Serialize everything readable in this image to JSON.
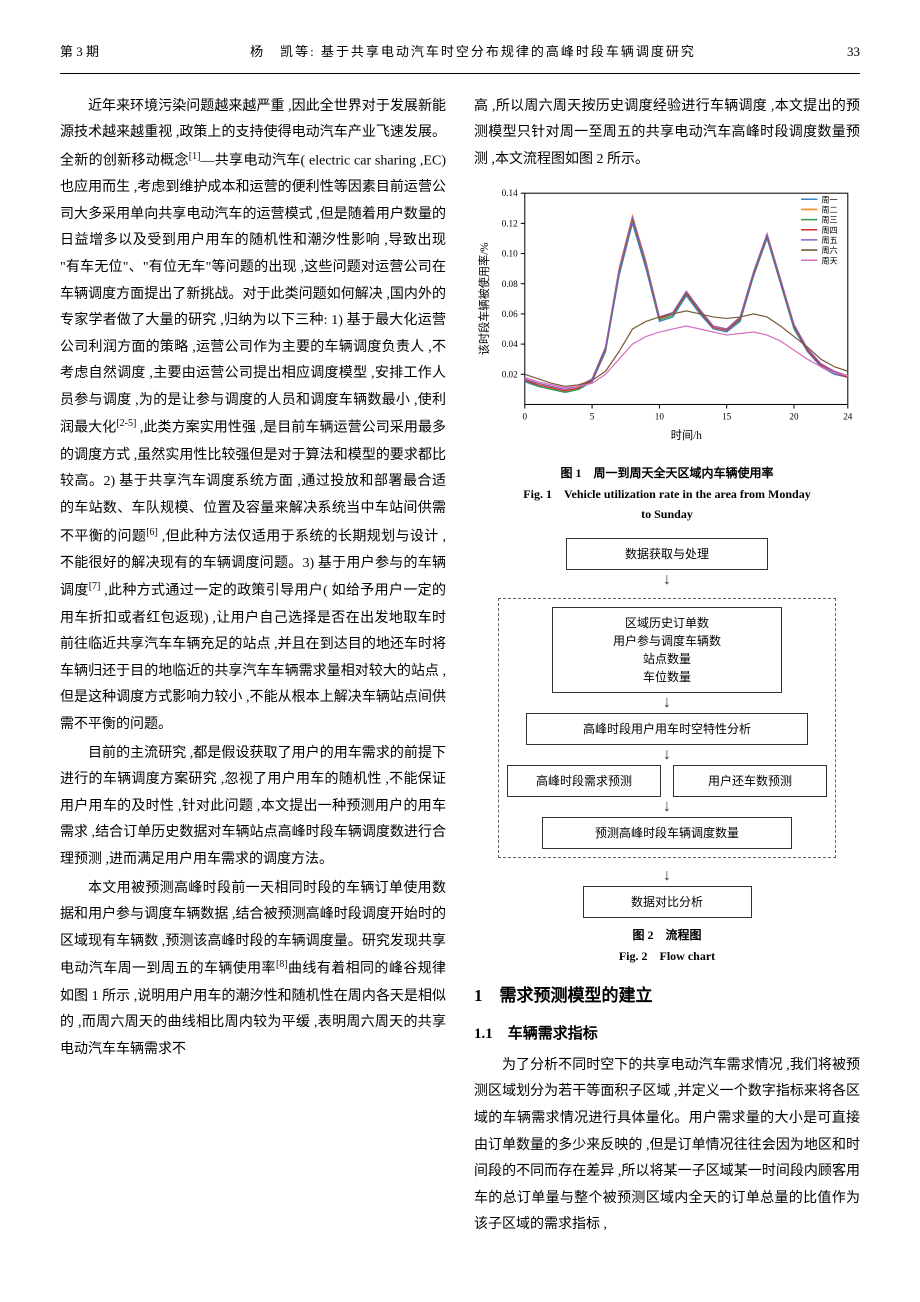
{
  "header": {
    "issue": "第 3 期",
    "title": "杨　凯等: 基于共享电动汽车时空分布规律的高峰时段车辆调度研究",
    "page": "33"
  },
  "left_col": {
    "para1": "近年来环境污染问题越来越严重 ,因此全世界对于发展新能源技术越来越重视 ,政策上的支持使得电动汽车产业飞速发展。全新的创新移动概念",
    "sup1": "[1]",
    "para1b": "—共享电动汽车( electric car sharing ,EC) 也应用而生 ,考虑到维护成本和运营的便利性等因素目前运营公司大多采用单向共享电动汽车的运营模式 ,但是随着用户数量的日益增多以及受到用户用车的随机性和潮汐性影响 ,导致出现 \"有车无位\"、\"有位无车\"等问题的出现 ,这些问题对运营公司在车辆调度方面提出了新挑战。对于此类问题如何解决 ,国内外的专家学者做了大量的研究 ,归纳为以下三种: 1) 基于最大化运营公司利润方面的策略 ,运营公司作为主要的车辆调度负责人 ,不考虑自然调度 ,主要由运营公司提出相应调度模型 ,安排工作人员参与调度 ,为的是让参与调度的人员和调度车辆数最小 ,使利润最大化",
    "sup2": "[2-5]",
    "para1c": " ,此类方案实用性强 ,是目前车辆运营公司采用最多的调度方式 ,虽然实用性比较强但是对于算法和模型的要求都比较高。2) 基于共享汽车调度系统方面 ,通过投放和部署最合适的车站数、车队规模、位置及容量来解决系统当中车站间供需不平衡的问题",
    "sup3": "[6]",
    "para1d": " ,但此种方法仅适用于系统的长期规划与设计 ,不能很好的解决现有的车辆调度问题。3) 基于用户参与的车辆调度",
    "sup4": "[7]",
    "para1e": " ,此种方式通过一定的政策引导用户( 如给予用户一定的用车折扣或者红包返现) ,让用户自己选择是否在出发地取车时前往临近共享汽车车辆充足的站点 ,并且在到达目的地还车时将车辆归还于目的地临近的共享汽车车辆需求量相对较大的站点 ,但是这种调度方式影响力较小 ,不能从根本上解决车辆站点间供需不平衡的问题。",
    "para2": "目前的主流研究 ,都是假设获取了用户的用车需求的前提下进行的车辆调度方案研究 ,忽视了用户用车的随机性 ,不能保证用户用车的及时性 ,针对此问题 ,本文提出一种预测用户的用车需求 ,结合订单历史数据对车辆站点高峰时段车辆调度数进行合理预测 ,进而满足用户用车需求的调度方法。",
    "para3a": "本文用被预测高峰时段前一天相同时段的车辆订单使用数据和用户参与调度车辆数据 ,结合被预测高峰时段调度开始时的区域现有车辆数 ,预测该高峰时段的车辆调度量。研究发现共享电动汽车周一到周五的车辆使用率",
    "sup5": "[8]",
    "para3b": "曲线有着相同的峰谷规律如图 1 所示 ,说明用户用车的潮汐性和随机性在周内各天是相似的 ,而周六周天的曲线相比周内较为平缓 ,表明周六周天的共享电动汽车车辆需求不"
  },
  "right_col": {
    "para0": "高 ,所以周六周天按历史调度经验进行车辆调度 ,本文提出的预测模型只针对周一至周五的共享电动汽车高峰时段调度数量预测 ,本文流程图如图 2 所示。",
    "section1_num": "1",
    "section1_title": "需求预测模型的建立",
    "subsection11_num": "1.1",
    "subsection11_title": "车辆需求指标",
    "para11": "为了分析不同时空下的共享电动汽车需求情况 ,我们将被预测区域划分为若干等面积子区域 ,并定义一个数字指标来将各区域的车辆需求情况进行具体量化。用户需求量的大小是可直接由订单数量的多少来反映的 ,但是订单情况往往会因为地区和时间段的不同而存在差异 ,所以将某一子区域某一时间段内顾客用车的总订单量与整个被预测区域内全天的订单总量的比值作为该子区域的需求指标 ,"
  },
  "fig1": {
    "caption_cn": "图 1　周一到周天全天区域内车辆使用率",
    "caption_en_a": "Fig. 1　Vehicle utilization rate in the area from Monday",
    "caption_en_b": "to Sunday",
    "chart": {
      "type": "line",
      "xlabel": "时间/h",
      "ylabel": "该时段车辆被使用率/%",
      "xlim": [
        0,
        24
      ],
      "ylim": [
        0,
        0.14
      ],
      "xticks": [
        0,
        5,
        10,
        15,
        20,
        24
      ],
      "yticks": [
        0.02,
        0.04,
        0.06,
        0.08,
        0.1,
        0.12,
        0.14
      ],
      "x_values": [
        0,
        1,
        2,
        3,
        4,
        5,
        6,
        7,
        8,
        9,
        10,
        11,
        12,
        13,
        14,
        15,
        16,
        17,
        18,
        19,
        20,
        21,
        22,
        23,
        24
      ],
      "series": [
        {
          "name": "周一",
          "color": "#3a82c4",
          "y": [
            0.015,
            0.012,
            0.01,
            0.008,
            0.01,
            0.015,
            0.035,
            0.085,
            0.12,
            0.09,
            0.055,
            0.058,
            0.072,
            0.06,
            0.05,
            0.048,
            0.055,
            0.085,
            0.11,
            0.08,
            0.05,
            0.035,
            0.025,
            0.02,
            0.018
          ]
        },
        {
          "name": "周二",
          "color": "#f48c2a",
          "y": [
            0.017,
            0.013,
            0.011,
            0.009,
            0.011,
            0.017,
            0.038,
            0.09,
            0.125,
            0.095,
            0.058,
            0.06,
            0.075,
            0.063,
            0.052,
            0.05,
            0.058,
            0.088,
            0.113,
            0.083,
            0.053,
            0.037,
            0.027,
            0.022,
            0.019
          ]
        },
        {
          "name": "周三",
          "color": "#2e9e4a",
          "y": [
            0.016,
            0.012,
            0.01,
            0.008,
            0.01,
            0.016,
            0.036,
            0.087,
            0.122,
            0.092,
            0.056,
            0.059,
            0.073,
            0.061,
            0.051,
            0.049,
            0.056,
            0.086,
            0.111,
            0.081,
            0.051,
            0.036,
            0.026,
            0.021,
            0.018
          ]
        },
        {
          "name": "周四",
          "color": "#d62a2a",
          "y": [
            0.016,
            0.013,
            0.011,
            0.009,
            0.011,
            0.016,
            0.037,
            0.088,
            0.123,
            0.093,
            0.057,
            0.06,
            0.074,
            0.062,
            0.051,
            0.049,
            0.057,
            0.087,
            0.112,
            0.082,
            0.052,
            0.036,
            0.026,
            0.021,
            0.018
          ]
        },
        {
          "name": "周五",
          "color": "#8a5fc4",
          "y": [
            0.017,
            0.014,
            0.012,
            0.01,
            0.012,
            0.017,
            0.038,
            0.089,
            0.124,
            0.094,
            0.058,
            0.061,
            0.075,
            0.063,
            0.052,
            0.05,
            0.058,
            0.088,
            0.113,
            0.083,
            0.053,
            0.037,
            0.027,
            0.022,
            0.019
          ]
        },
        {
          "name": "周六",
          "color": "#7a5a3a",
          "y": [
            0.02,
            0.017,
            0.014,
            0.012,
            0.013,
            0.016,
            0.022,
            0.035,
            0.05,
            0.055,
            0.058,
            0.06,
            0.062,
            0.06,
            0.058,
            0.057,
            0.058,
            0.06,
            0.058,
            0.052,
            0.045,
            0.038,
            0.03,
            0.025,
            0.022
          ]
        },
        {
          "name": "周天",
          "color": "#d96fc0",
          "y": [
            0.018,
            0.015,
            0.013,
            0.011,
            0.012,
            0.014,
            0.02,
            0.03,
            0.04,
            0.045,
            0.048,
            0.05,
            0.052,
            0.05,
            0.048,
            0.046,
            0.047,
            0.048,
            0.046,
            0.042,
            0.036,
            0.03,
            0.025,
            0.021,
            0.019
          ]
        }
      ],
      "background_color": "#ffffff",
      "axis_color": "#000000",
      "line_width": 1.2
    }
  },
  "fig2": {
    "caption_cn": "图 2　流程图",
    "caption_en": "Fig. 2　Flow chart",
    "nodes": {
      "n1": "数据获取与处理",
      "n2": "区域历史订单数\n用户参与调度车辆数\n站点数量\n车位数量",
      "n3": "高峰时段用户用车时空特性分析",
      "n4": "高峰时段需求预测",
      "n5": "用户还车数预测",
      "n6": "预测高峰时段车辆调度数量",
      "n7": "数据对比分析"
    },
    "node_bg": "#ffffff",
    "node_border": "#333333",
    "dashed_border": "#888888"
  }
}
